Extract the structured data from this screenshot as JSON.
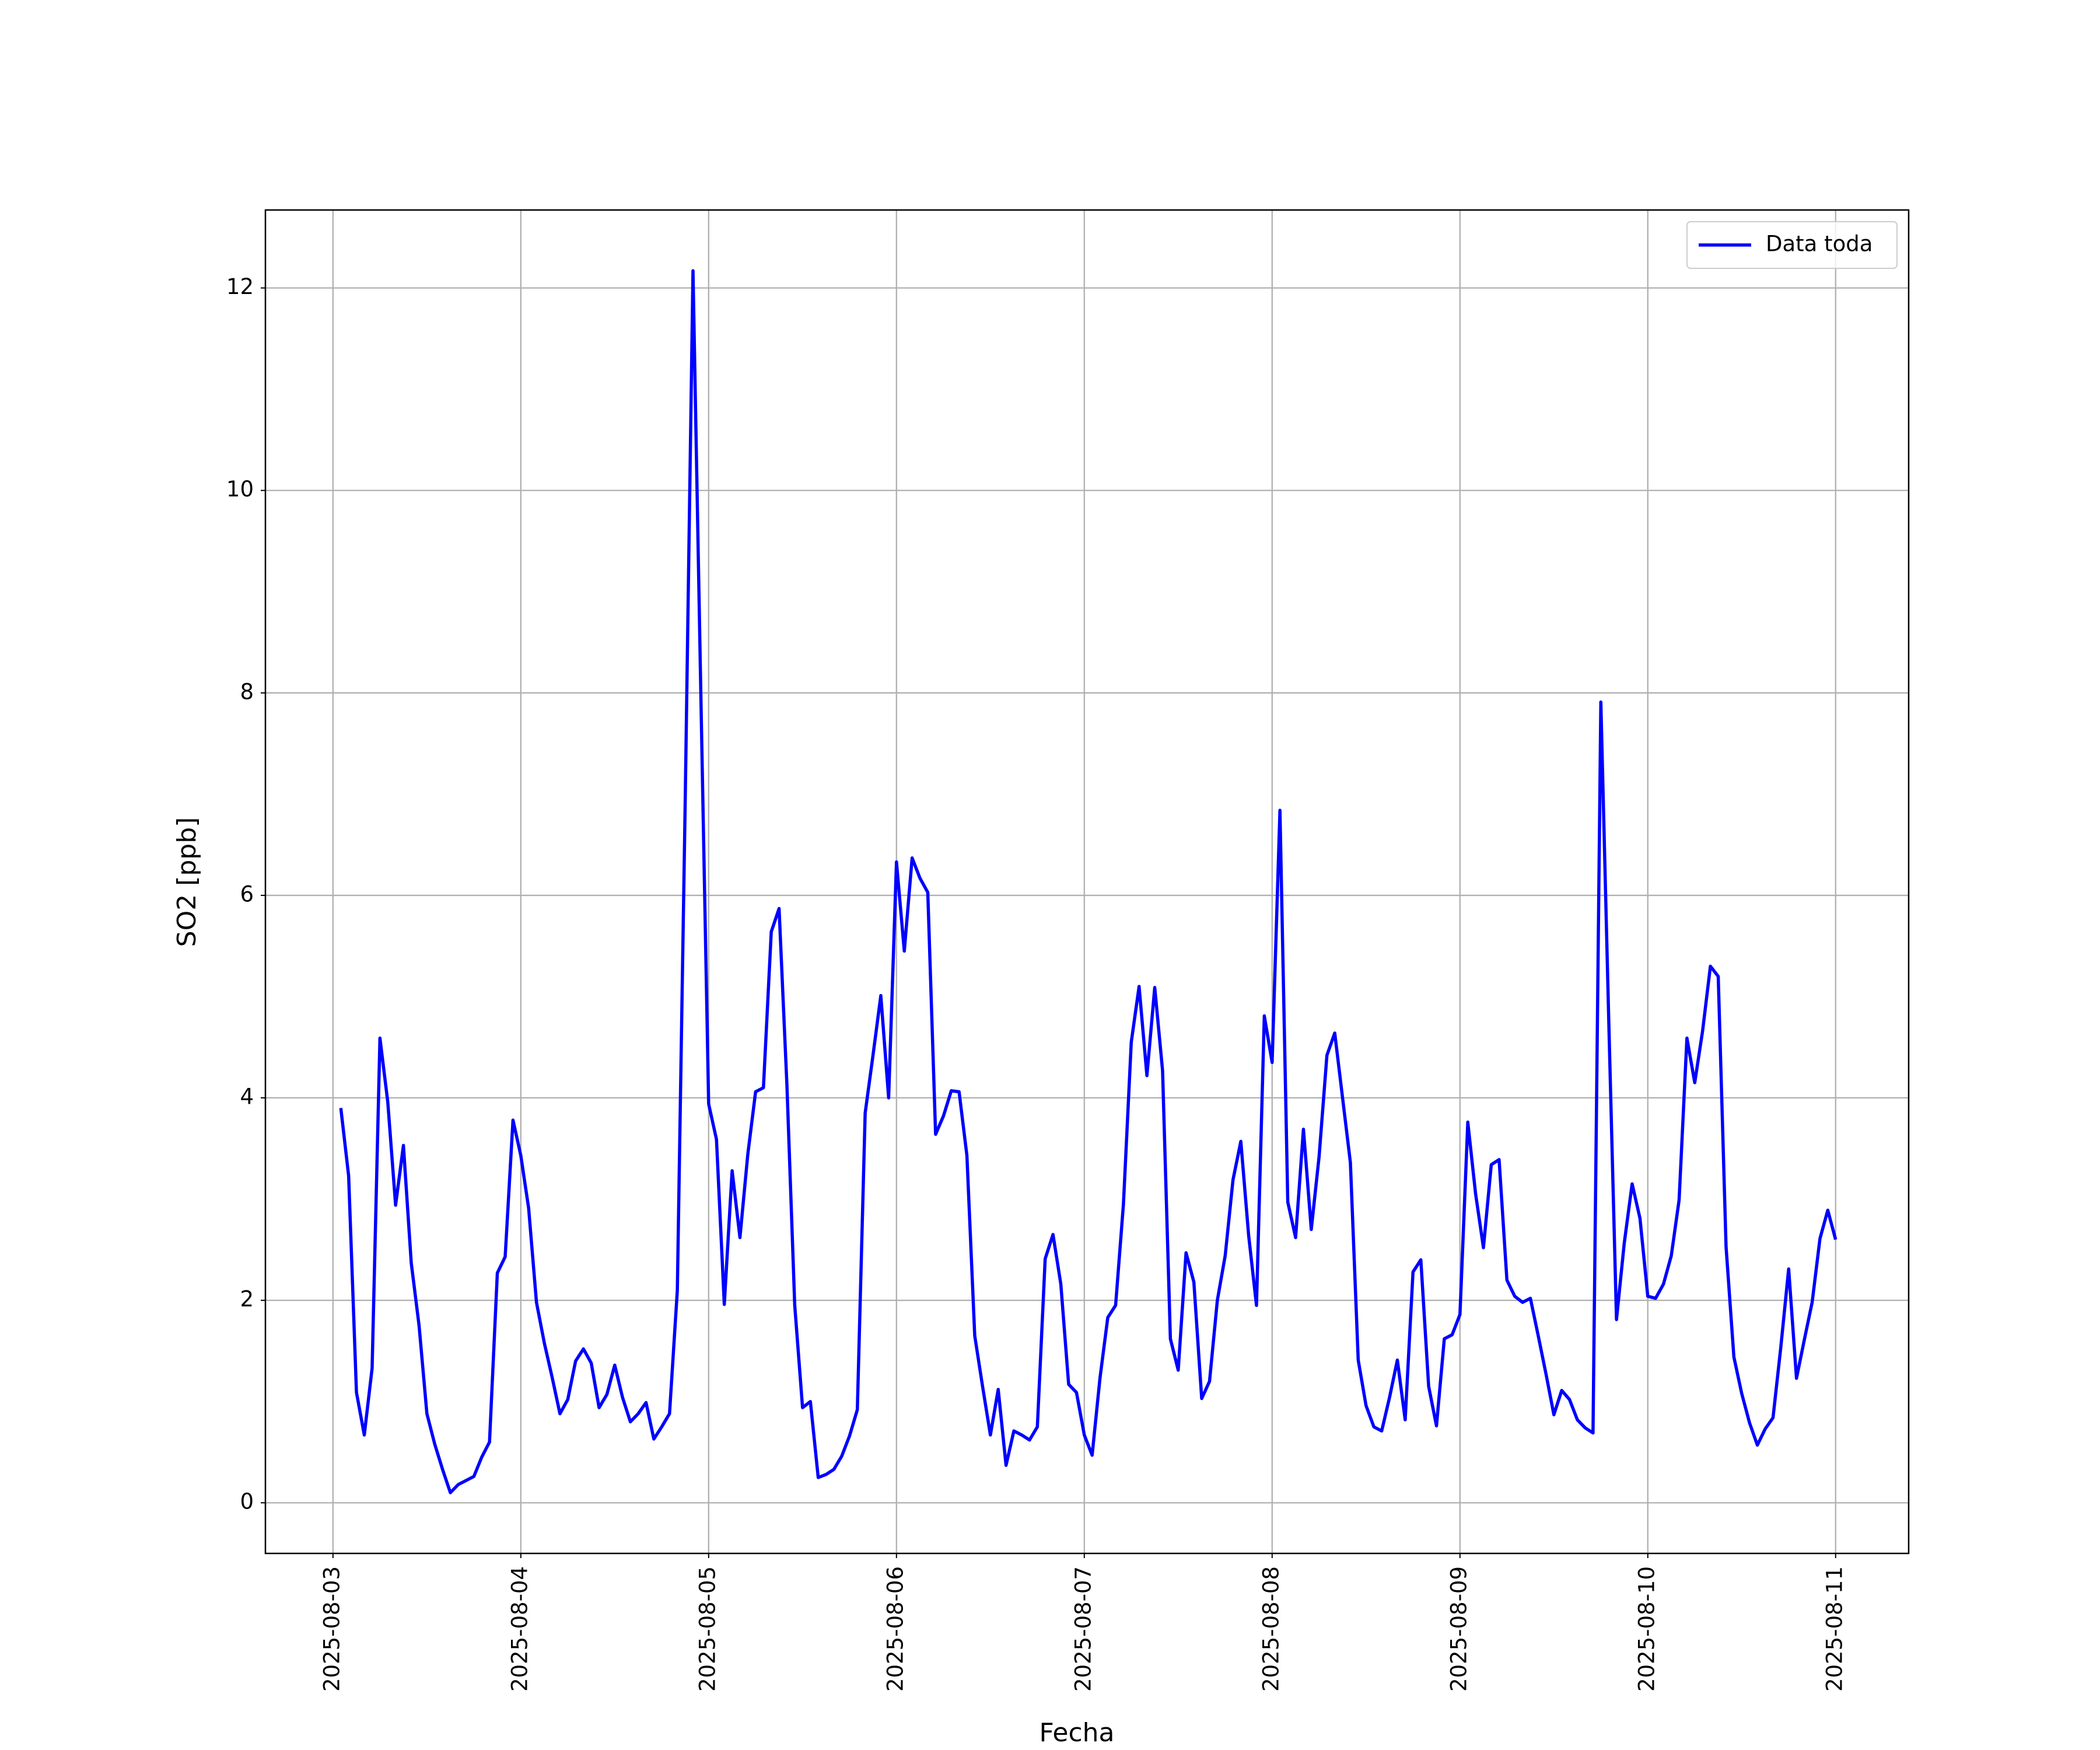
{
  "chart_data": {
    "type": "line",
    "xlabel": "Fecha",
    "ylabel": "SO2 [ppb]",
    "x": [
      "2025-08-03 01:00",
      "2025-08-03 02:00",
      "2025-08-03 03:00",
      "2025-08-03 04:00",
      "2025-08-03 05:00",
      "2025-08-03 06:00",
      "2025-08-03 07:00",
      "2025-08-03 08:00",
      "2025-08-03 09:00",
      "2025-08-03 10:00",
      "2025-08-03 11:00",
      "2025-08-03 12:00",
      "2025-08-03 13:00",
      "2025-08-03 14:00",
      "2025-08-03 15:00",
      "2025-08-03 16:00",
      "2025-08-03 17:00",
      "2025-08-03 18:00",
      "2025-08-03 19:00",
      "2025-08-03 20:00",
      "2025-08-03 21:00",
      "2025-08-03 22:00",
      "2025-08-03 23:00",
      "2025-08-04 00:00",
      "2025-08-04 01:00",
      "2025-08-04 02:00",
      "2025-08-04 03:00",
      "2025-08-04 04:00",
      "2025-08-04 05:00",
      "2025-08-04 06:00",
      "2025-08-04 07:00",
      "2025-08-04 08:00",
      "2025-08-04 09:00",
      "2025-08-04 10:00",
      "2025-08-04 11:00",
      "2025-08-04 12:00",
      "2025-08-04 13:00",
      "2025-08-04 14:00",
      "2025-08-04 15:00",
      "2025-08-04 16:00",
      "2025-08-04 17:00",
      "2025-08-04 18:00",
      "2025-08-04 19:00",
      "2025-08-04 20:00",
      "2025-08-04 21:00",
      "2025-08-04 22:00",
      "2025-08-04 23:00",
      "2025-08-05 00:00",
      "2025-08-05 01:00",
      "2025-08-05 02:00",
      "2025-08-05 03:00",
      "2025-08-05 04:00",
      "2025-08-05 05:00",
      "2025-08-05 06:00",
      "2025-08-05 07:00",
      "2025-08-05 08:00",
      "2025-08-05 09:00",
      "2025-08-05 10:00",
      "2025-08-05 11:00",
      "2025-08-05 12:00",
      "2025-08-05 13:00",
      "2025-08-05 14:00",
      "2025-08-05 15:00",
      "2025-08-05 16:00",
      "2025-08-05 17:00",
      "2025-08-05 18:00",
      "2025-08-05 19:00",
      "2025-08-05 20:00",
      "2025-08-05 21:00",
      "2025-08-05 22:00",
      "2025-08-05 23:00",
      "2025-08-06 00:00",
      "2025-08-06 01:00",
      "2025-08-06 02:00",
      "2025-08-06 03:00",
      "2025-08-06 04:00",
      "2025-08-06 05:00",
      "2025-08-06 06:00",
      "2025-08-06 07:00",
      "2025-08-06 08:00",
      "2025-08-06 09:00",
      "2025-08-06 10:00",
      "2025-08-06 11:00",
      "2025-08-06 12:00",
      "2025-08-06 13:00",
      "2025-08-06 14:00",
      "2025-08-06 15:00",
      "2025-08-06 16:00",
      "2025-08-06 17:00",
      "2025-08-06 18:00",
      "2025-08-06 19:00",
      "2025-08-06 20:00",
      "2025-08-06 21:00",
      "2025-08-06 22:00",
      "2025-08-06 23:00",
      "2025-08-07 00:00",
      "2025-08-07 01:00",
      "2025-08-07 02:00",
      "2025-08-07 03:00",
      "2025-08-07 04:00",
      "2025-08-07 05:00",
      "2025-08-07 06:00",
      "2025-08-07 07:00",
      "2025-08-07 08:00",
      "2025-08-07 09:00",
      "2025-08-07 10:00",
      "2025-08-07 11:00",
      "2025-08-07 12:00",
      "2025-08-07 13:00",
      "2025-08-07 14:00",
      "2025-08-07 15:00",
      "2025-08-07 16:00",
      "2025-08-07 17:00",
      "2025-08-07 18:00",
      "2025-08-07 19:00",
      "2025-08-07 20:00",
      "2025-08-07 21:00",
      "2025-08-07 22:00",
      "2025-08-07 23:00",
      "2025-08-08 00:00",
      "2025-08-08 01:00",
      "2025-08-08 02:00",
      "2025-08-08 03:00",
      "2025-08-08 04:00",
      "2025-08-08 05:00",
      "2025-08-08 06:00",
      "2025-08-08 07:00",
      "2025-08-08 08:00",
      "2025-08-08 09:00",
      "2025-08-08 10:00",
      "2025-08-08 11:00",
      "2025-08-08 12:00",
      "2025-08-08 13:00",
      "2025-08-08 14:00",
      "2025-08-08 15:00",
      "2025-08-08 16:00",
      "2025-08-08 17:00",
      "2025-08-08 18:00",
      "2025-08-08 19:00",
      "2025-08-08 20:00",
      "2025-08-08 21:00",
      "2025-08-08 22:00",
      "2025-08-08 23:00",
      "2025-08-09 00:00",
      "2025-08-09 01:00",
      "2025-08-09 02:00",
      "2025-08-09 03:00",
      "2025-08-09 04:00",
      "2025-08-09 05:00",
      "2025-08-09 06:00",
      "2025-08-09 07:00",
      "2025-08-09 08:00",
      "2025-08-09 09:00",
      "2025-08-09 10:00",
      "2025-08-09 11:00",
      "2025-08-09 12:00",
      "2025-08-09 13:00",
      "2025-08-09 14:00",
      "2025-08-09 15:00",
      "2025-08-09 16:00",
      "2025-08-09 17:00",
      "2025-08-09 18:00",
      "2025-08-09 19:00",
      "2025-08-09 20:00",
      "2025-08-09 21:00",
      "2025-08-09 22:00",
      "2025-08-09 23:00",
      "2025-08-10 00:00",
      "2025-08-10 01:00",
      "2025-08-10 02:00",
      "2025-08-10 03:00",
      "2025-08-10 04:00",
      "2025-08-10 05:00",
      "2025-08-10 06:00",
      "2025-08-10 07:00",
      "2025-08-10 08:00",
      "2025-08-10 09:00",
      "2025-08-10 10:00",
      "2025-08-10 11:00",
      "2025-08-10 12:00",
      "2025-08-10 13:00",
      "2025-08-10 14:00",
      "2025-08-10 15:00",
      "2025-08-10 16:00",
      "2025-08-10 17:00",
      "2025-08-10 18:00",
      "2025-08-10 19:00",
      "2025-08-10 20:00",
      "2025-08-10 21:00",
      "2025-08-10 22:00",
      "2025-08-10 23:00",
      "2025-08-11 00:00"
    ],
    "series": [
      {
        "name": "Data toda",
        "color": "#0000ff",
        "values": [
          3.9,
          3.23,
          1.09,
          0.67,
          1.33,
          4.59,
          3.96,
          2.94,
          3.53,
          2.37,
          1.75,
          0.88,
          0.58,
          0.33,
          0.1,
          0.18,
          0.22,
          0.26,
          0.45,
          0.6,
          2.27,
          2.43,
          3.78,
          3.43,
          2.91,
          1.98,
          1.58,
          1.24,
          0.88,
          1.02,
          1.4,
          1.52,
          1.38,
          0.94,
          1.07,
          1.36,
          1.04,
          0.8,
          0.88,
          0.99,
          0.63,
          0.75,
          0.88,
          2.1,
          6.9,
          12.17,
          8.0,
          3.94,
          3.59,
          1.96,
          3.28,
          2.62,
          3.44,
          4.06,
          4.1,
          5.64,
          5.87,
          4.13,
          1.95,
          0.94,
          1.0,
          0.25,
          0.28,
          0.33,
          0.46,
          0.66,
          0.92,
          3.85,
          4.42,
          5.01,
          4.0,
          6.33,
          5.45,
          6.37,
          6.17,
          6.03,
          3.64,
          3.82,
          4.07,
          4.06,
          3.43,
          1.65,
          1.15,
          0.67,
          1.12,
          0.37,
          0.71,
          0.67,
          0.62,
          0.75,
          2.41,
          2.65,
          2.16,
          1.17,
          1.09,
          0.67,
          0.47,
          1.23,
          1.83,
          1.95,
          2.95,
          4.55,
          5.1,
          4.22,
          5.09,
          4.27,
          1.62,
          1.31,
          2.47,
          2.18,
          1.03,
          1.2,
          2.0,
          2.44,
          3.19,
          3.57,
          2.64,
          1.95,
          4.81,
          4.35,
          6.84,
          2.97,
          2.62,
          3.69,
          2.7,
          3.42,
          4.42,
          4.64,
          4.0,
          3.36,
          1.41,
          0.96,
          0.75,
          0.71,
          1.04,
          1.41,
          0.82,
          2.28,
          2.4,
          1.15,
          0.76,
          1.62,
          1.66,
          1.86,
          3.76,
          3.05,
          2.52,
          3.34,
          3.39,
          2.2,
          2.04,
          1.98,
          2.02,
          1.65,
          1.27,
          0.87,
          1.11,
          1.02,
          0.82,
          0.74,
          0.69,
          7.91,
          4.8,
          1.81,
          2.57,
          3.15,
          2.81,
          2.04,
          2.02,
          2.16,
          2.44,
          2.99,
          4.59,
          4.15,
          4.66,
          5.3,
          5.2,
          2.53,
          1.44,
          1.08,
          0.79,
          0.57,
          0.73,
          0.84,
          1.54,
          2.31,
          1.23,
          1.61,
          1.98,
          2.61,
          2.89,
          2.6
        ]
      }
    ],
    "xlim": [
      "2025-08-02 15:22",
      "2025-08-11 09:20"
    ],
    "xticks": [
      "2025-08-03",
      "2025-08-04",
      "2025-08-05",
      "2025-08-06",
      "2025-08-07",
      "2025-08-08",
      "2025-08-09",
      "2025-08-10",
      "2025-08-11"
    ],
    "ylim": [
      -0.5,
      12.77
    ],
    "yticks": [
      0,
      2,
      4,
      6,
      8,
      10,
      12
    ],
    "grid": true,
    "legend": "upper right"
  }
}
